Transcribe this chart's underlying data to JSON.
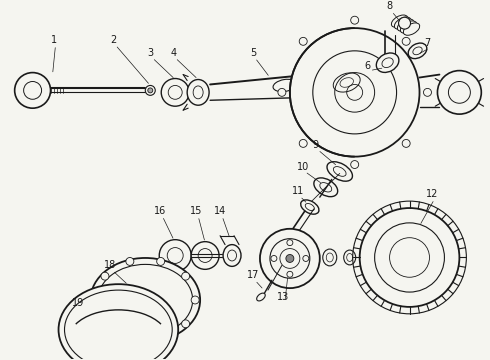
{
  "bg_color": "#f5f5f0",
  "line_color": "#1a1a1a",
  "label_color": "#111111",
  "figsize": [
    4.9,
    3.6
  ],
  "dpi": 100
}
